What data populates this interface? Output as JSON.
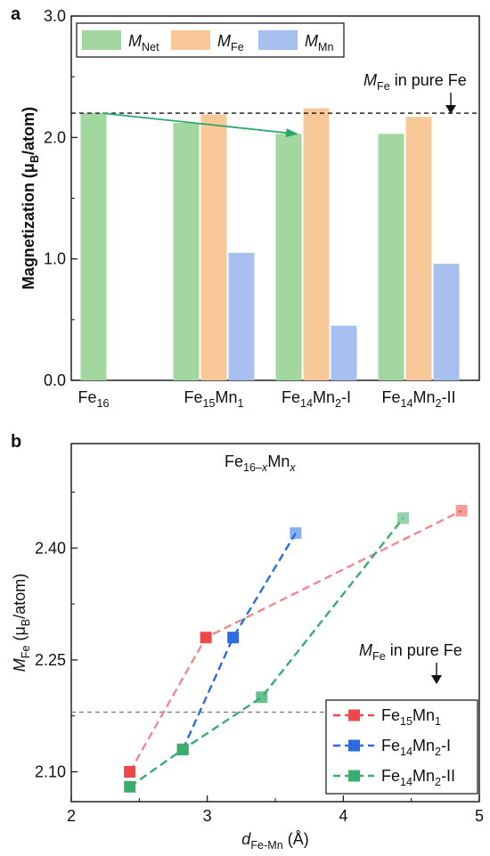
{
  "chart_data": [
    {
      "panel": "a",
      "type": "bar",
      "ylabel": {
        "main": "Magnetization (μ",
        "sub": "B",
        "rest": "/atom)"
      },
      "ylim": [
        0,
        3.0
      ],
      "yticks": [
        "0.0",
        "1.0",
        "2.0",
        "3.0"
      ],
      "ytick_values": [
        0,
        1,
        2,
        3
      ],
      "categories": [
        {
          "main": "Fe",
          "sub": "16",
          "rest": "",
          "sub2": "",
          "tail": ""
        },
        {
          "main": "Fe",
          "sub": "15",
          "rest": "Mn",
          "sub2": "1",
          "tail": ""
        },
        {
          "main": "Fe",
          "sub": "14",
          "rest": "Mn",
          "sub2": "2",
          "tail": "-I"
        },
        {
          "main": "Fe",
          "sub": "14",
          "rest": "Mn",
          "sub2": "2",
          "tail": "-II"
        }
      ],
      "series": [
        {
          "key": "net",
          "legend_main": "M",
          "legend_sub": "Net",
          "color": "#a3d7a0",
          "values": [
            2.2,
            2.12,
            2.03,
            2.03
          ]
        },
        {
          "key": "fe",
          "legend_main": "M",
          "legend_sub": "Fe",
          "color": "#f8c898",
          "values": [
            null,
            2.19,
            2.24,
            2.17
          ]
        },
        {
          "key": "mn",
          "legend_main": "M",
          "legend_sub": "Mn",
          "color": "#a8c0ef",
          "values": [
            null,
            1.05,
            0.45,
            0.96
          ]
        }
      ],
      "reference": {
        "value": 2.2,
        "label_main": "M",
        "label_sub": "Fe",
        "label_rest": " in pure Fe"
      },
      "arrow": {
        "from": [
          0,
          2.2
        ],
        "to": [
          2,
          2.03
        ],
        "color": "#2aa86a"
      },
      "legend_position": "top-left"
    },
    {
      "panel": "b",
      "type": "line",
      "title": {
        "main": "Fe",
        "sub": "16–x",
        "rest": "Mn",
        "sub2": "x"
      },
      "xlabel": {
        "main": "d",
        "sub": "Fe-Mn",
        "rest": " (Å)"
      },
      "ylabel": {
        "main": "M",
        "sub": "Fe",
        "rest": " (μ",
        "sub2": "B",
        "tail": "/atom)"
      },
      "xlim": [
        2,
        5
      ],
      "ylim": [
        2.06,
        2.54
      ],
      "xticks": [
        "2",
        "3",
        "4",
        "5"
      ],
      "xtick_values": [
        2,
        3,
        4,
        5
      ],
      "yticks": [
        "2.10",
        "2.25",
        "2.40"
      ],
      "ytick_values": [
        2.1,
        2.25,
        2.4
      ],
      "reference": {
        "value": 2.18,
        "label_main": "M",
        "label_sub": "Fe",
        "label_rest": " in pure Fe"
      },
      "series": [
        {
          "legend_main": "Fe",
          "legend_sub": "15",
          "legend_rest": "Mn",
          "legend_sub2": "1",
          "legend_tail": "",
          "color": "#f04848",
          "line_color": "#f08a8a",
          "x": [
            2.43,
            2.99,
            4.87
          ],
          "y": [
            2.1,
            2.28,
            2.45
          ]
        },
        {
          "legend_main": "Fe",
          "legend_sub": "14",
          "legend_rest": "Mn",
          "legend_sub2": "2",
          "legend_tail": "-I",
          "color": "#2a6de0",
          "line_color": "#2a6de0",
          "x": [
            2.82,
            3.19,
            3.65
          ],
          "y": [
            2.13,
            2.28,
            2.42
          ]
        },
        {
          "legend_main": "Fe",
          "legend_sub": "14",
          "legend_rest": "Mn",
          "legend_sub2": "2",
          "legend_tail": "-II",
          "color": "#3aae6c",
          "line_color": "#3aae6c",
          "x": [
            2.43,
            2.82,
            3.4,
            4.44
          ],
          "y": [
            2.08,
            2.13,
            2.2,
            2.44
          ]
        }
      ],
      "legend_position": "bottom-right"
    }
  ]
}
